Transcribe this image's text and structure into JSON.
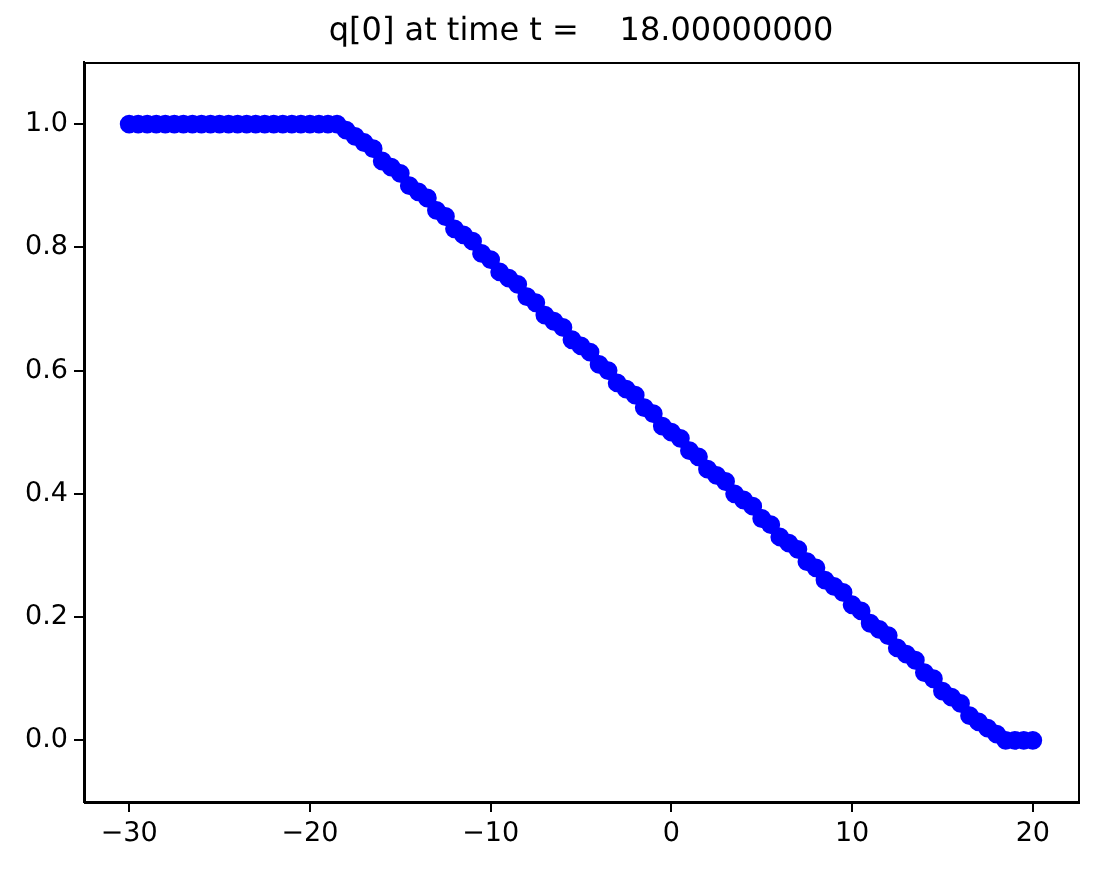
{
  "chart_data": {
    "type": "scatter",
    "title": "q[0] at time t =    18.00000000",
    "x": [
      -30,
      -29.5,
      -29,
      -28.5,
      -28,
      -27.5,
      -27,
      -26.5,
      -26,
      -25.5,
      -25,
      -24.5,
      -24,
      -23.5,
      -23,
      -22.5,
      -22,
      -21.5,
      -21,
      -20.5,
      -20,
      -19.5,
      -19,
      -18.5,
      -18,
      -17.5,
      -17,
      -16.5,
      -16,
      -15.5,
      -15,
      -14.5,
      -14,
      -13.5,
      -13,
      -12.5,
      -12,
      -11.5,
      -11,
      -10.5,
      -10,
      -9.5,
      -9,
      -8.5,
      -8,
      -7.5,
      -7,
      -6.5,
      -6,
      -5.5,
      -5,
      -4.5,
      -4,
      -3.5,
      -3,
      -2.5,
      -2,
      -1.5,
      -1,
      -0.5,
      0,
      0.5,
      1,
      1.5,
      2,
      2.5,
      3,
      3.5,
      4,
      4.5,
      5,
      5.5,
      6,
      6.5,
      7,
      7.5,
      8,
      8.5,
      9,
      9.5,
      10,
      10.5,
      11,
      11.5,
      12,
      12.5,
      13,
      13.5,
      14,
      14.5,
      15,
      15.5,
      16,
      16.5,
      17,
      17.5,
      18,
      18.5,
      19,
      19.5,
      20
    ],
    "values": [
      1,
      1,
      1,
      1,
      1,
      1,
      1,
      1,
      1,
      1,
      1,
      1,
      1,
      1,
      1,
      1,
      1,
      1,
      1,
      1,
      1,
      1,
      1,
      1,
      0.99,
      0.98,
      0.97,
      0.96,
      0.94,
      0.93,
      0.92,
      0.9,
      0.89,
      0.88,
      0.86,
      0.85,
      0.83,
      0.82,
      0.81,
      0.79,
      0.78,
      0.76,
      0.75,
      0.74,
      0.72,
      0.71,
      0.69,
      0.68,
      0.67,
      0.65,
      0.64,
      0.63,
      0.61,
      0.6,
      0.58,
      0.57,
      0.56,
      0.54,
      0.53,
      0.51,
      0.5,
      0.49,
      0.47,
      0.46,
      0.44,
      0.43,
      0.42,
      0.4,
      0.39,
      0.38,
      0.36,
      0.35,
      0.33,
      0.32,
      0.31,
      0.29,
      0.28,
      0.26,
      0.25,
      0.24,
      0.22,
      0.21,
      0.19,
      0.18,
      0.17,
      0.15,
      0.14,
      0.13,
      0.11,
      0.1,
      0.08,
      0.07,
      0.06,
      0.04,
      0.03,
      0.02,
      0.01,
      0,
      0,
      0,
      0
    ],
    "color": "#0000ff",
    "marker": "circle",
    "xlim": [
      -32.5,
      22.5
    ],
    "ylim": [
      -0.1,
      1.1
    ],
    "xticks": [
      {
        "value": -30,
        "label": "−30"
      },
      {
        "value": -20,
        "label": "−20"
      },
      {
        "value": -10,
        "label": "−10"
      },
      0,
      10,
      20
    ],
    "yticks": [
      {
        "value": 0,
        "label": "0.0"
      },
      {
        "value": 0.2,
        "label": "0.2"
      },
      {
        "value": 0.4,
        "label": "0.4"
      },
      {
        "value": 0.6,
        "label": "0.6"
      },
      {
        "value": 0.8,
        "label": "0.8"
      },
      {
        "value": 1,
        "label": "1.0"
      }
    ],
    "grid": false,
    "legend": false
  }
}
